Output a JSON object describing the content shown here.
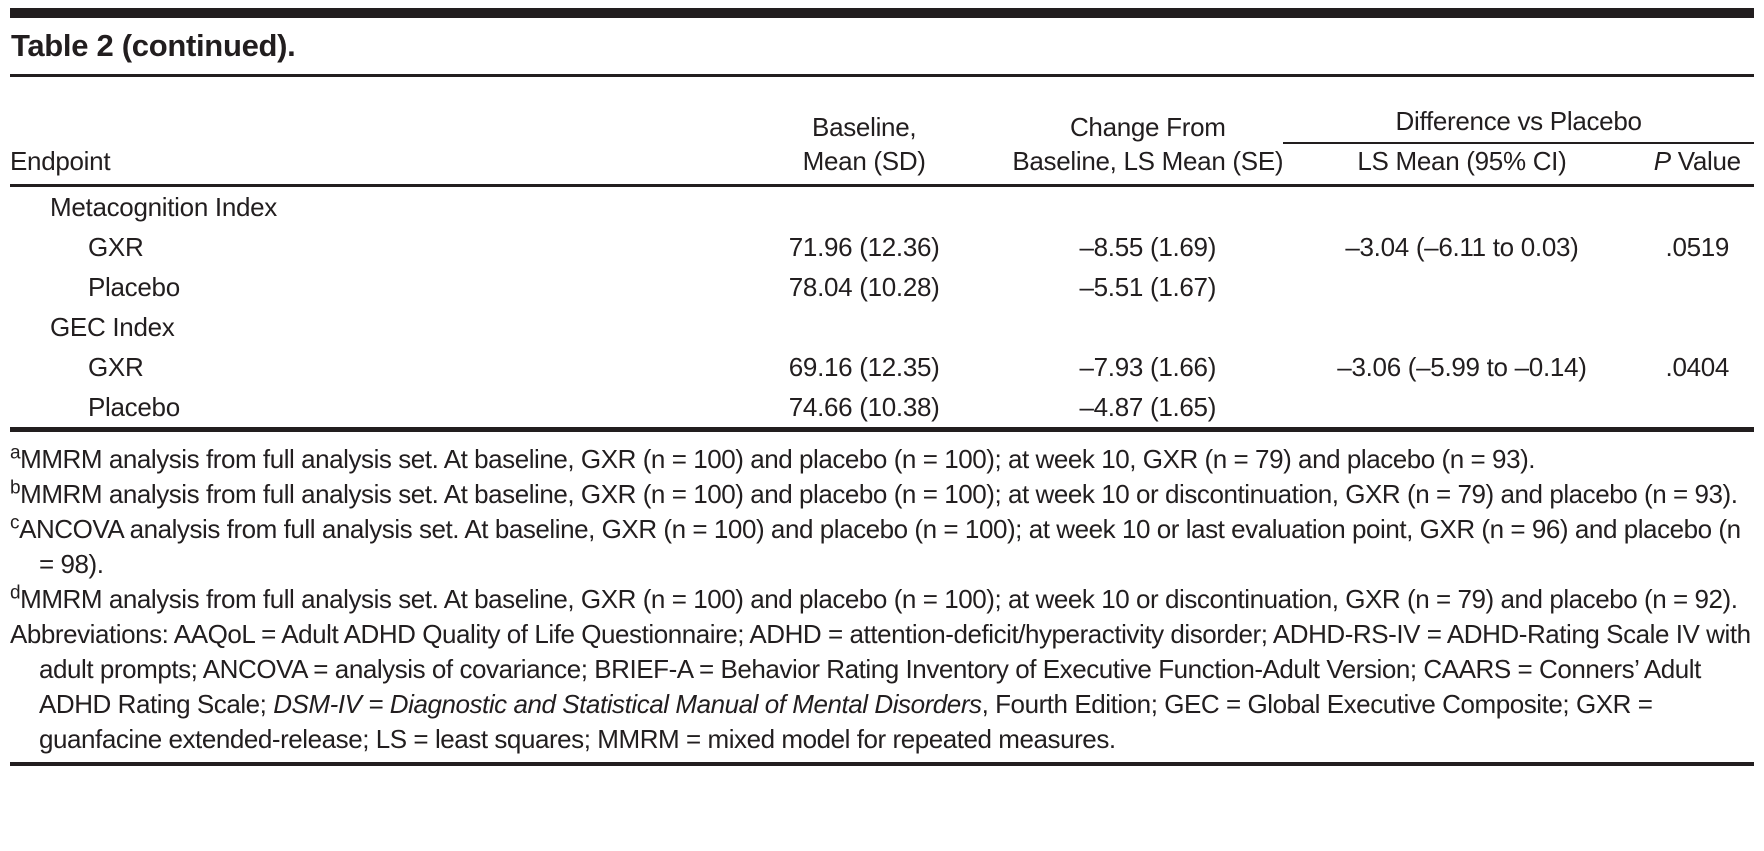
{
  "title": "Table 2 (continued).",
  "table": {
    "header": {
      "endpoint": "Endpoint",
      "baseline_line1": "Baseline,",
      "baseline_line2": "Mean (SD)",
      "change_line1": "Change From",
      "change_line2": "Baseline, LS Mean (SE)",
      "diff_group": "Difference vs Placebo",
      "diff_sub": "LS Mean (95% CI)",
      "p_italic": "P",
      "p_rest": " Value"
    },
    "rows": [
      {
        "label": "Metacognition Index",
        "indent": 1,
        "baseline": "",
        "change": "",
        "diff": "",
        "p": ""
      },
      {
        "label": "GXR",
        "indent": 2,
        "baseline": "71.96 (12.36)",
        "change": "–8.55 (1.69)",
        "diff": "–3.04 (–6.11 to 0.03)",
        "p": ".0519"
      },
      {
        "label": "Placebo",
        "indent": 2,
        "baseline": "78.04 (10.28)",
        "change": "–5.51 (1.67)",
        "diff": "",
        "p": ""
      },
      {
        "label": "GEC Index",
        "indent": 1,
        "baseline": "",
        "change": "",
        "diff": "",
        "p": ""
      },
      {
        "label": "GXR",
        "indent": 2,
        "baseline": "69.16 (12.35)",
        "change": "–7.93 (1.66)",
        "diff": "–3.06 (–5.99 to –0.14)",
        "p": ".0404"
      },
      {
        "label": "Placebo",
        "indent": 2,
        "baseline": "74.66 (10.38)",
        "change": "–4.87 (1.65)",
        "diff": "",
        "p": ""
      }
    ]
  },
  "footnotes": [
    {
      "marker": "a",
      "text": "MMRM analysis from full analysis set. At baseline, GXR (n = 100) and placebo (n = 100); at week 10, GXR (n = 79) and placebo (n = 93)."
    },
    {
      "marker": "b",
      "text": "MMRM analysis from full analysis set. At baseline, GXR (n = 100) and placebo (n = 100); at week 10 or discontinuation, GXR (n = 79) and placebo (n = 93)."
    },
    {
      "marker": "c",
      "text": "ANCOVA analysis from full analysis set. At baseline, GXR (n = 100) and placebo (n = 100); at week 10 or last evaluation point, GXR (n = 96) and placebo (n = 98)."
    },
    {
      "marker": "d",
      "text": "MMRM analysis from full analysis set. At baseline, GXR (n = 100) and placebo (n = 100); at week 10 or discontinuation, GXR (n = 79) and placebo (n = 92)."
    }
  ],
  "abbreviations": {
    "segments": [
      {
        "italic": false,
        "text": "Abbreviations: AAQoL = Adult ADHD Quality of Life Questionnaire; ADHD = attention-deficit/hyperactivity disorder; ADHD-RS-IV = ADHD-Rating Scale IV with adult prompts; ANCOVA = analysis of covariance; BRIEF-A = Behavior Rating Inventory of Executive Function-Adult Version; CAARS = Conners’ Adult ADHD Rating Scale; "
      },
      {
        "italic": true,
        "text": "DSM-IV = Diagnostic and Statistical Manual of Mental Disorders"
      },
      {
        "italic": false,
        "text": ", Fourth Edition; GEC = Global Executive Composite; GXR = guanfacine extended-release; LS = least squares; MMRM = mixed model for repeated measures."
      }
    ]
  }
}
